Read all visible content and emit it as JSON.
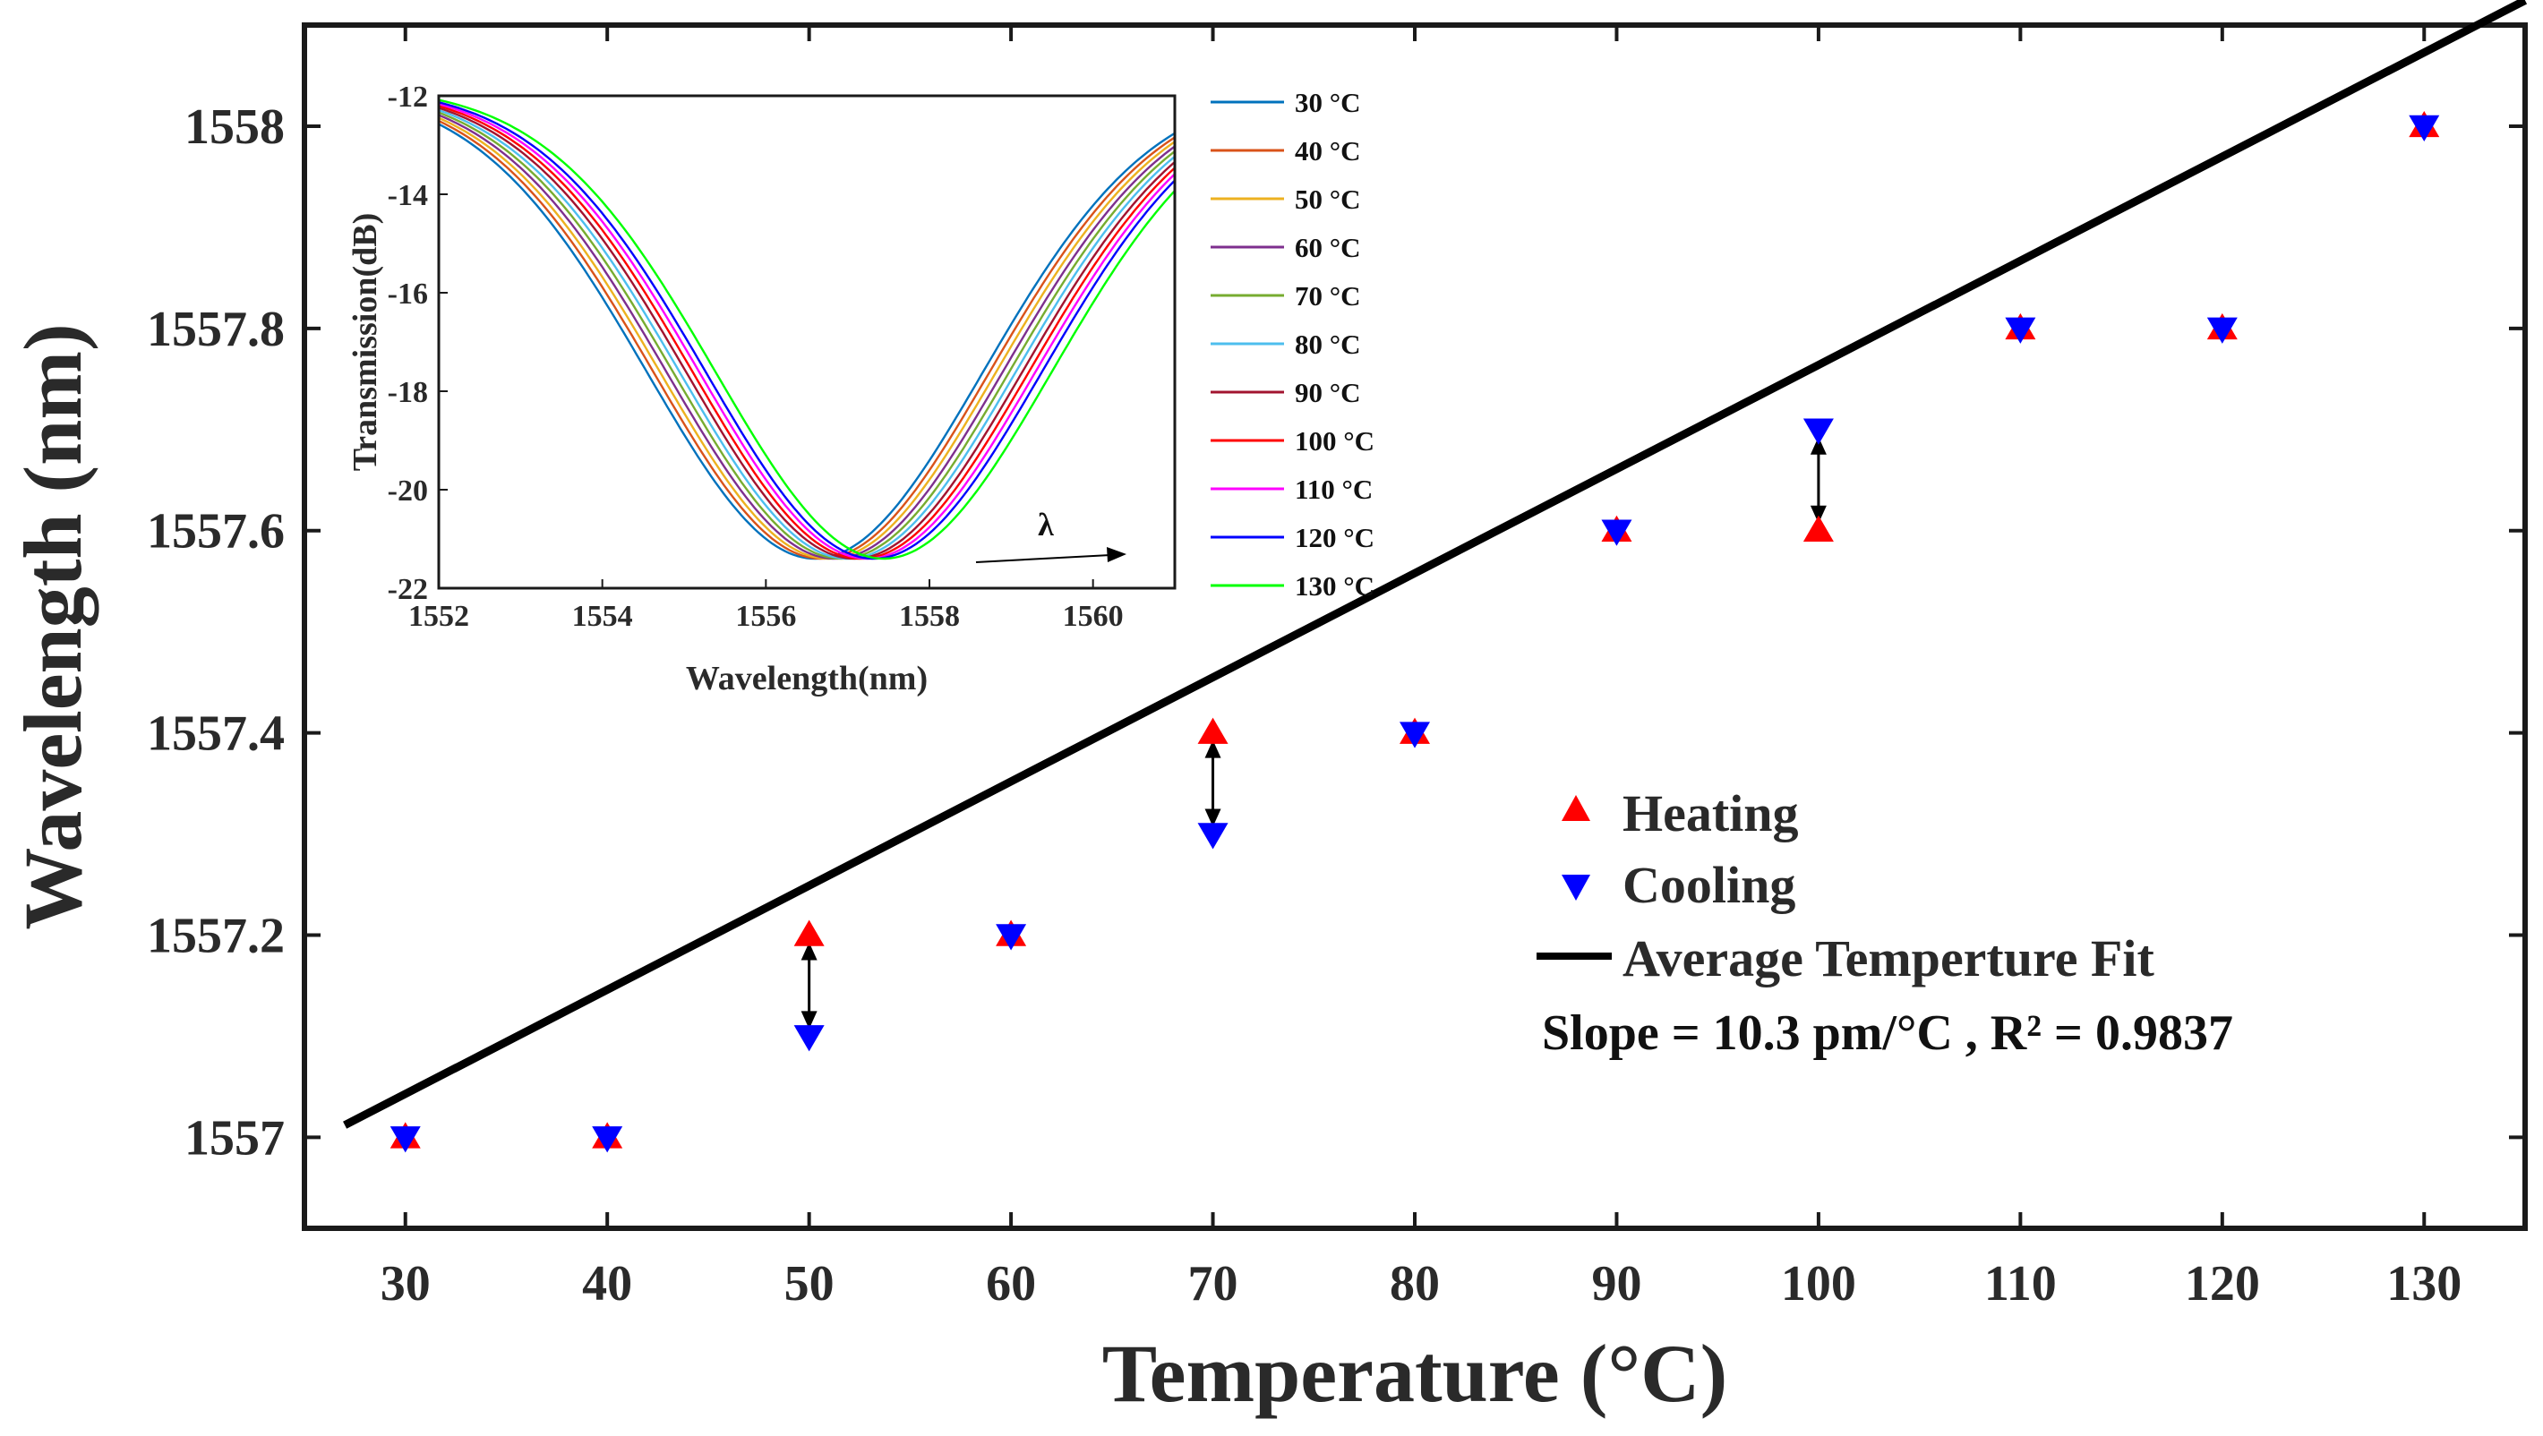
{
  "chart_data": [
    {
      "type": "scatter",
      "xlabel": "Temperature (°C)",
      "ylabel": "Wavelength (nm)",
      "xlim": [
        25,
        135
      ],
      "ylim": [
        1556.91,
        1558.1
      ],
      "xticks": [
        30,
        40,
        50,
        60,
        70,
        80,
        90,
        100,
        110,
        120,
        130
      ],
      "yticks": [
        1557,
        1557.2,
        1557.4,
        1557.6,
        1557.8,
        1558
      ],
      "ytick_labels": [
        "1557",
        "1557.2",
        "1557.4",
        "1557.6",
        "1557.8",
        "1558"
      ],
      "series": [
        {
          "name": "Heating",
          "marker": "triangle-up",
          "color": "#ff0000",
          "x": [
            30,
            40,
            50,
            60,
            70,
            80,
            90,
            100,
            110,
            120,
            130
          ],
          "y": [
            1557.0,
            1557.0,
            1557.2,
            1557.2,
            1557.4,
            1557.4,
            1557.6,
            1557.6,
            1557.8,
            1557.8,
            1558.0
          ]
        },
        {
          "name": "Cooling",
          "marker": "triangle-down",
          "color": "#0000ff",
          "x": [
            30,
            40,
            50,
            60,
            70,
            80,
            90,
            100,
            110,
            120,
            130
          ],
          "y": [
            1557.0,
            1557.0,
            1557.1,
            1557.2,
            1557.3,
            1557.4,
            1557.6,
            1557.7,
            1557.8,
            1557.8,
            1558.0
          ]
        }
      ],
      "fit": {
        "name": "Average Temperture Fit",
        "color": "#000000",
        "slope_nm_per_C": 0.0103,
        "intercept_nm": 1556.7339,
        "x_range": [
          27,
          135
        ]
      },
      "hysteresis_arrows_x": [
        50,
        70,
        100
      ],
      "annotation": "Slope = 10.3 pm/°C , R² = 0.9837"
    },
    {
      "type": "line",
      "role": "inset",
      "xlabel": "Wavelength(nm)",
      "ylabel": "Transmission(dB)",
      "xlim": [
        1552,
        1561
      ],
      "ylim": [
        -22,
        -12
      ],
      "xticks": [
        1552,
        1554,
        1556,
        1558,
        1560
      ],
      "yticks": [
        -12,
        -14,
        -16,
        -18,
        -20,
        -22
      ],
      "arrow_label": "λ",
      "series": [
        {
          "name": "30 °C",
          "color": "#0072bd",
          "center_nm": 1556.6
        },
        {
          "name": "40 °C",
          "color": "#d95319",
          "center_nm": 1556.68
        },
        {
          "name": "50 °C",
          "color": "#edb120",
          "center_nm": 1556.76
        },
        {
          "name": "60 °C",
          "color": "#7e2f8e",
          "center_nm": 1556.84
        },
        {
          "name": "70 °C",
          "color": "#77ac30",
          "center_nm": 1556.92
        },
        {
          "name": "80 °C",
          "color": "#4dbeee",
          "center_nm": 1557.0
        },
        {
          "name": "90 °C",
          "color": "#a2142f",
          "center_nm": 1557.08
        },
        {
          "name": "100 °C",
          "color": "#ff0000",
          "center_nm": 1557.16
        },
        {
          "name": "110 °C",
          "color": "#ff00ff",
          "center_nm": 1557.24
        },
        {
          "name": "120 °C",
          "color": "#0000ff",
          "center_nm": 1557.32
        },
        {
          "name": "130 °C",
          "color": "#00ff00",
          "center_nm": 1557.44
        }
      ]
    }
  ]
}
